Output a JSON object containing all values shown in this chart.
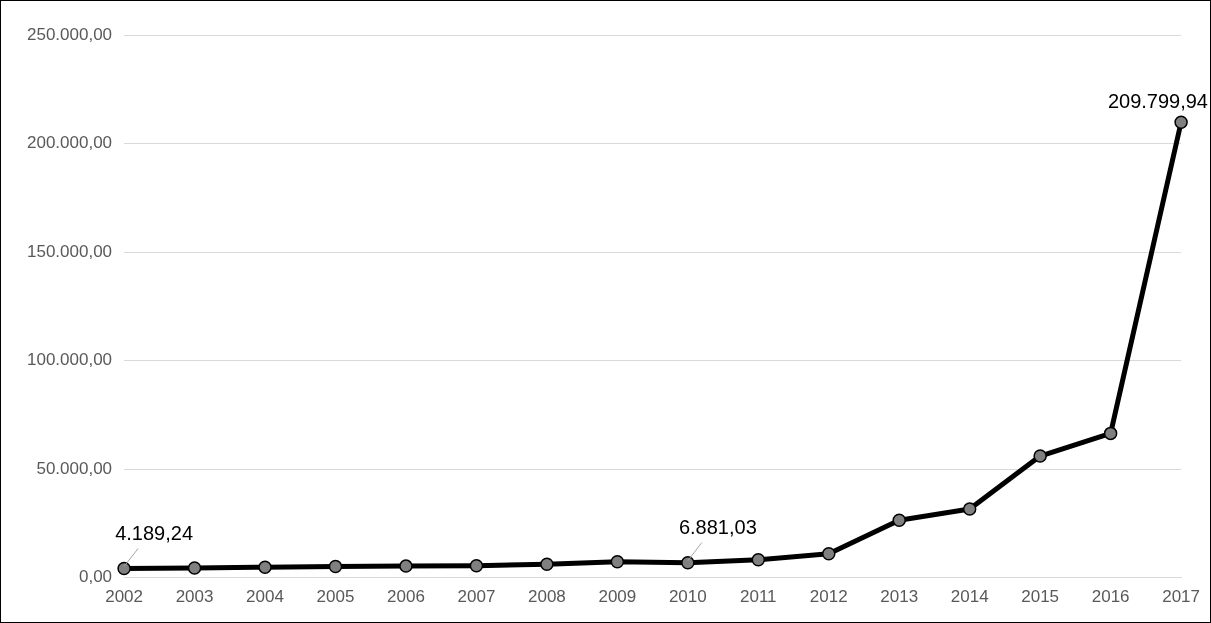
{
  "chart_data": {
    "type": "line",
    "categories": [
      "2002",
      "2003",
      "2004",
      "2005",
      "2006",
      "2007",
      "2008",
      "2009",
      "2010",
      "2011",
      "2012",
      "2013",
      "2014",
      "2015",
      "2016",
      "2017"
    ],
    "series": [
      {
        "color": "#000000",
        "values": [
          4189.24,
          4450,
          4800,
          5100,
          5300,
          5450,
          6150,
          7300,
          6881.03,
          8200,
          11000,
          26450,
          31600,
          56000,
          66450,
          209799.94
        ],
        "value_labels": [
          "4.189,24",
          null,
          null,
          null,
          null,
          null,
          null,
          null,
          "6.881,03",
          null,
          null,
          null,
          null,
          null,
          null,
          "209.799,94"
        ]
      }
    ],
    "ylim": [
      0,
      250000
    ],
    "yticks": [
      {
        "value": 0,
        "label": "0,00"
      },
      {
        "value": 50000,
        "label": "50.000,00"
      },
      {
        "value": 100000,
        "label": "100.000,00"
      },
      {
        "value": 150000,
        "label": "150.000,00"
      },
      {
        "value": 200000,
        "label": "200.000,00"
      },
      {
        "value": 250000,
        "label": "250.000,00"
      }
    ],
    "grid": "y",
    "legend": false,
    "marker": "circle",
    "line_style": "solid"
  }
}
